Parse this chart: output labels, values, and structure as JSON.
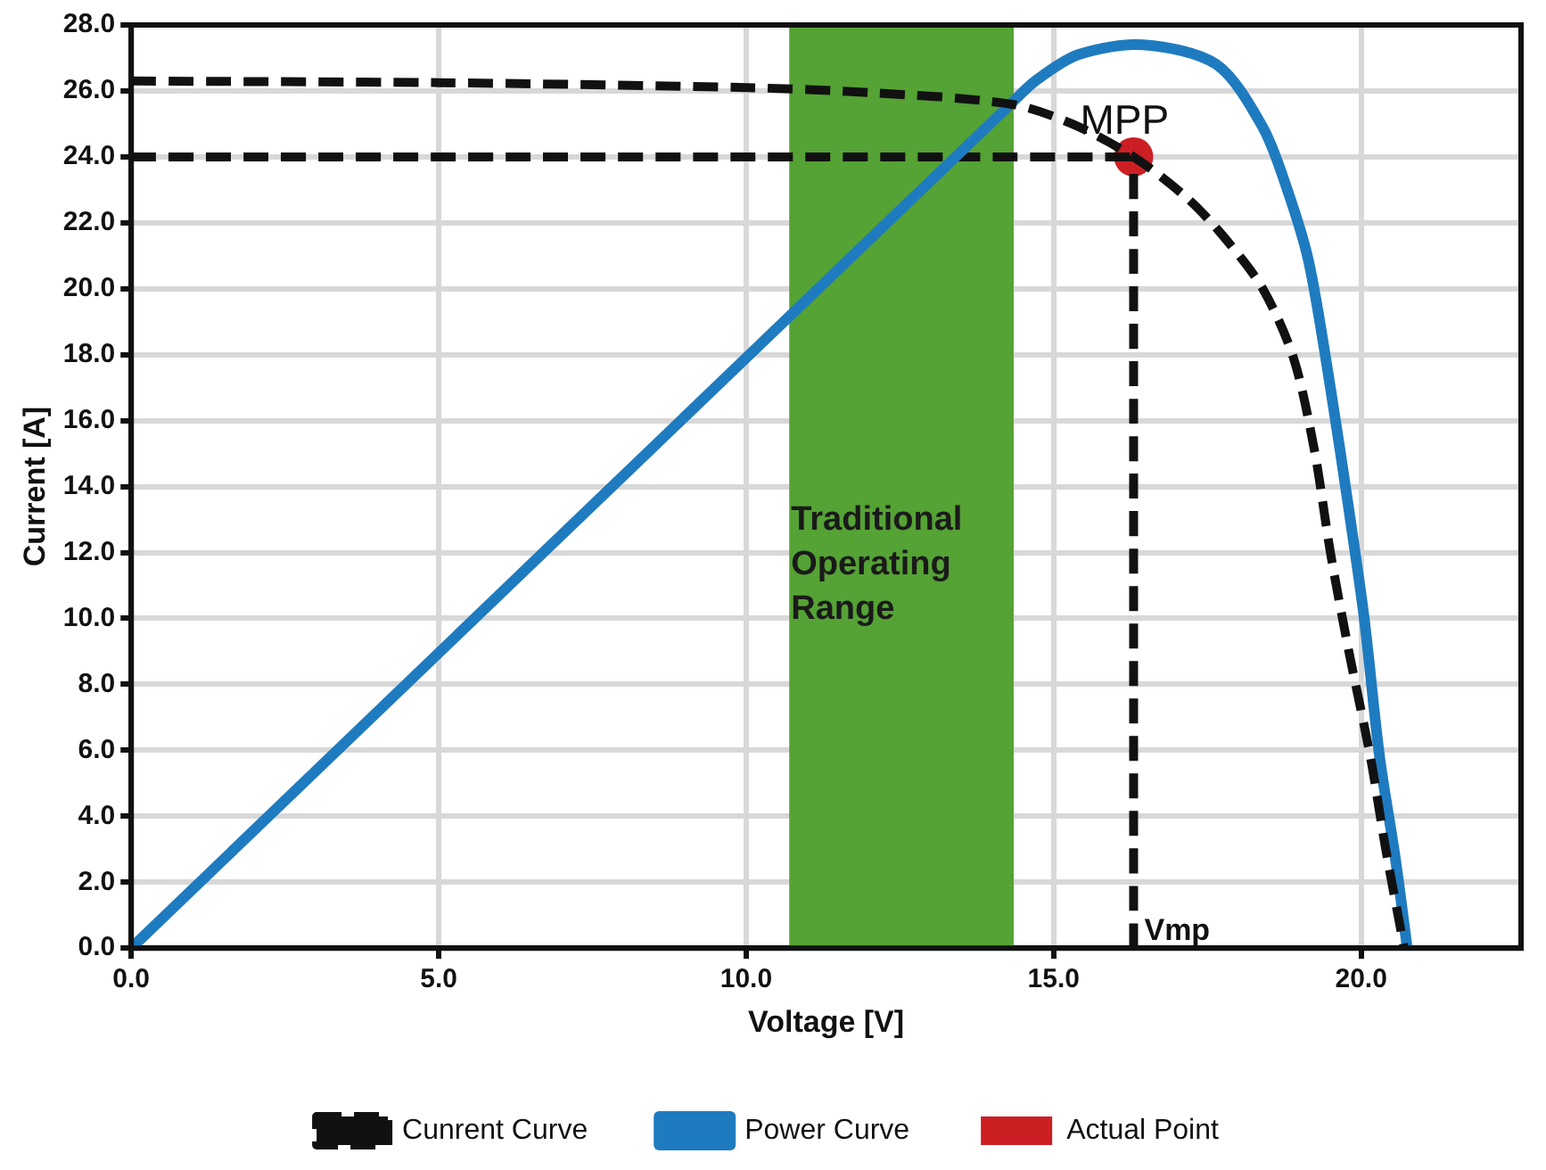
{
  "chart_data": {
    "type": "line",
    "xlabel": "Voltage [V]",
    "ylabel": "Current [A]",
    "xlim": [
      0,
      22.6
    ],
    "ylim": [
      0,
      28
    ],
    "xticks": [
      {
        "value": 0,
        "label": "0.0"
      },
      {
        "value": 5,
        "label": "5.0"
      },
      {
        "value": 10,
        "label": "10.0"
      },
      {
        "value": 15,
        "label": "15.0"
      },
      {
        "value": 20,
        "label": "20.0"
      }
    ],
    "yticks": [
      {
        "value": 0,
        "label": "0.0"
      },
      {
        "value": 2,
        "label": "2.0"
      },
      {
        "value": 4,
        "label": "4.0"
      },
      {
        "value": 6,
        "label": "6.0"
      },
      {
        "value": 8,
        "label": "8.0"
      },
      {
        "value": 10,
        "label": "10.0"
      },
      {
        "value": 12,
        "label": "12.0"
      },
      {
        "value": 14,
        "label": "14.0"
      },
      {
        "value": 16,
        "label": "16.0"
      },
      {
        "value": 18,
        "label": "18.0"
      },
      {
        "value": 20,
        "label": "20.0"
      },
      {
        "value": 22,
        "label": "22.0"
      },
      {
        "value": 24,
        "label": "24.0"
      },
      {
        "value": 26,
        "label": "26.0"
      },
      {
        "value": 28,
        "label": "28.0"
      }
    ],
    "grid": true,
    "legend": "bottom",
    "series": [
      {
        "name": "Cunrent Curve",
        "color": "#111111",
        "line_style": "dashed",
        "marker": "none",
        "x": [
          0,
          5,
          10,
          12,
          14.3,
          15.3,
          16.3,
          17.2,
          17.8,
          18.4,
          18.9,
          19.24,
          19.5,
          19.8,
          20.15,
          20.4,
          20.7
        ],
        "values": [
          26.3,
          26.25,
          26.1,
          25.95,
          25.6,
          25.0,
          24.0,
          22.7,
          21.5,
          20.0,
          17.9,
          15.1,
          12.0,
          9.0,
          5.8,
          3.0,
          0
        ]
      },
      {
        "name": "Power Curve",
        "color": "#1f7bbf",
        "line_style": "solid",
        "marker": "none",
        "x": [
          0,
          14.3,
          14.7,
          15.4,
          16.46,
          17.65,
          18.4,
          18.8,
          19.15,
          19.5,
          19.8,
          20.05,
          20.3,
          20.55,
          20.75
        ],
        "values": [
          0,
          25.6,
          26.3,
          27.1,
          27.4,
          26.8,
          24.9,
          23.0,
          20.8,
          17.0,
          13.3,
          10.0,
          5.8,
          2.8,
          0
        ]
      },
      {
        "color": "#111111",
        "line_style": "dashed",
        "marker": "none",
        "x": [
          0,
          16.3
        ],
        "values": [
          24.0,
          24.0
        ]
      },
      {
        "color": "#111111",
        "line_style": "dashed",
        "marker": "none",
        "x": [
          16.3,
          16.3
        ],
        "values": [
          0,
          24.0
        ]
      },
      {
        "name": "Actual Point",
        "type": "scatter",
        "color": "#cc1f24",
        "marker": "circle",
        "x": [
          16.3
        ],
        "values": [
          24.0
        ]
      }
    ],
    "bands": [
      {
        "axis": "x",
        "from": 10.7,
        "to": 14.35,
        "label": "Traditional Operating Range",
        "color": "#55a235"
      }
    ],
    "annotations": [
      {
        "text": "MPP",
        "x": 16.3,
        "y": 24.0
      },
      {
        "text": "Vmp",
        "x": 16.3,
        "y": 0
      }
    ]
  }
}
